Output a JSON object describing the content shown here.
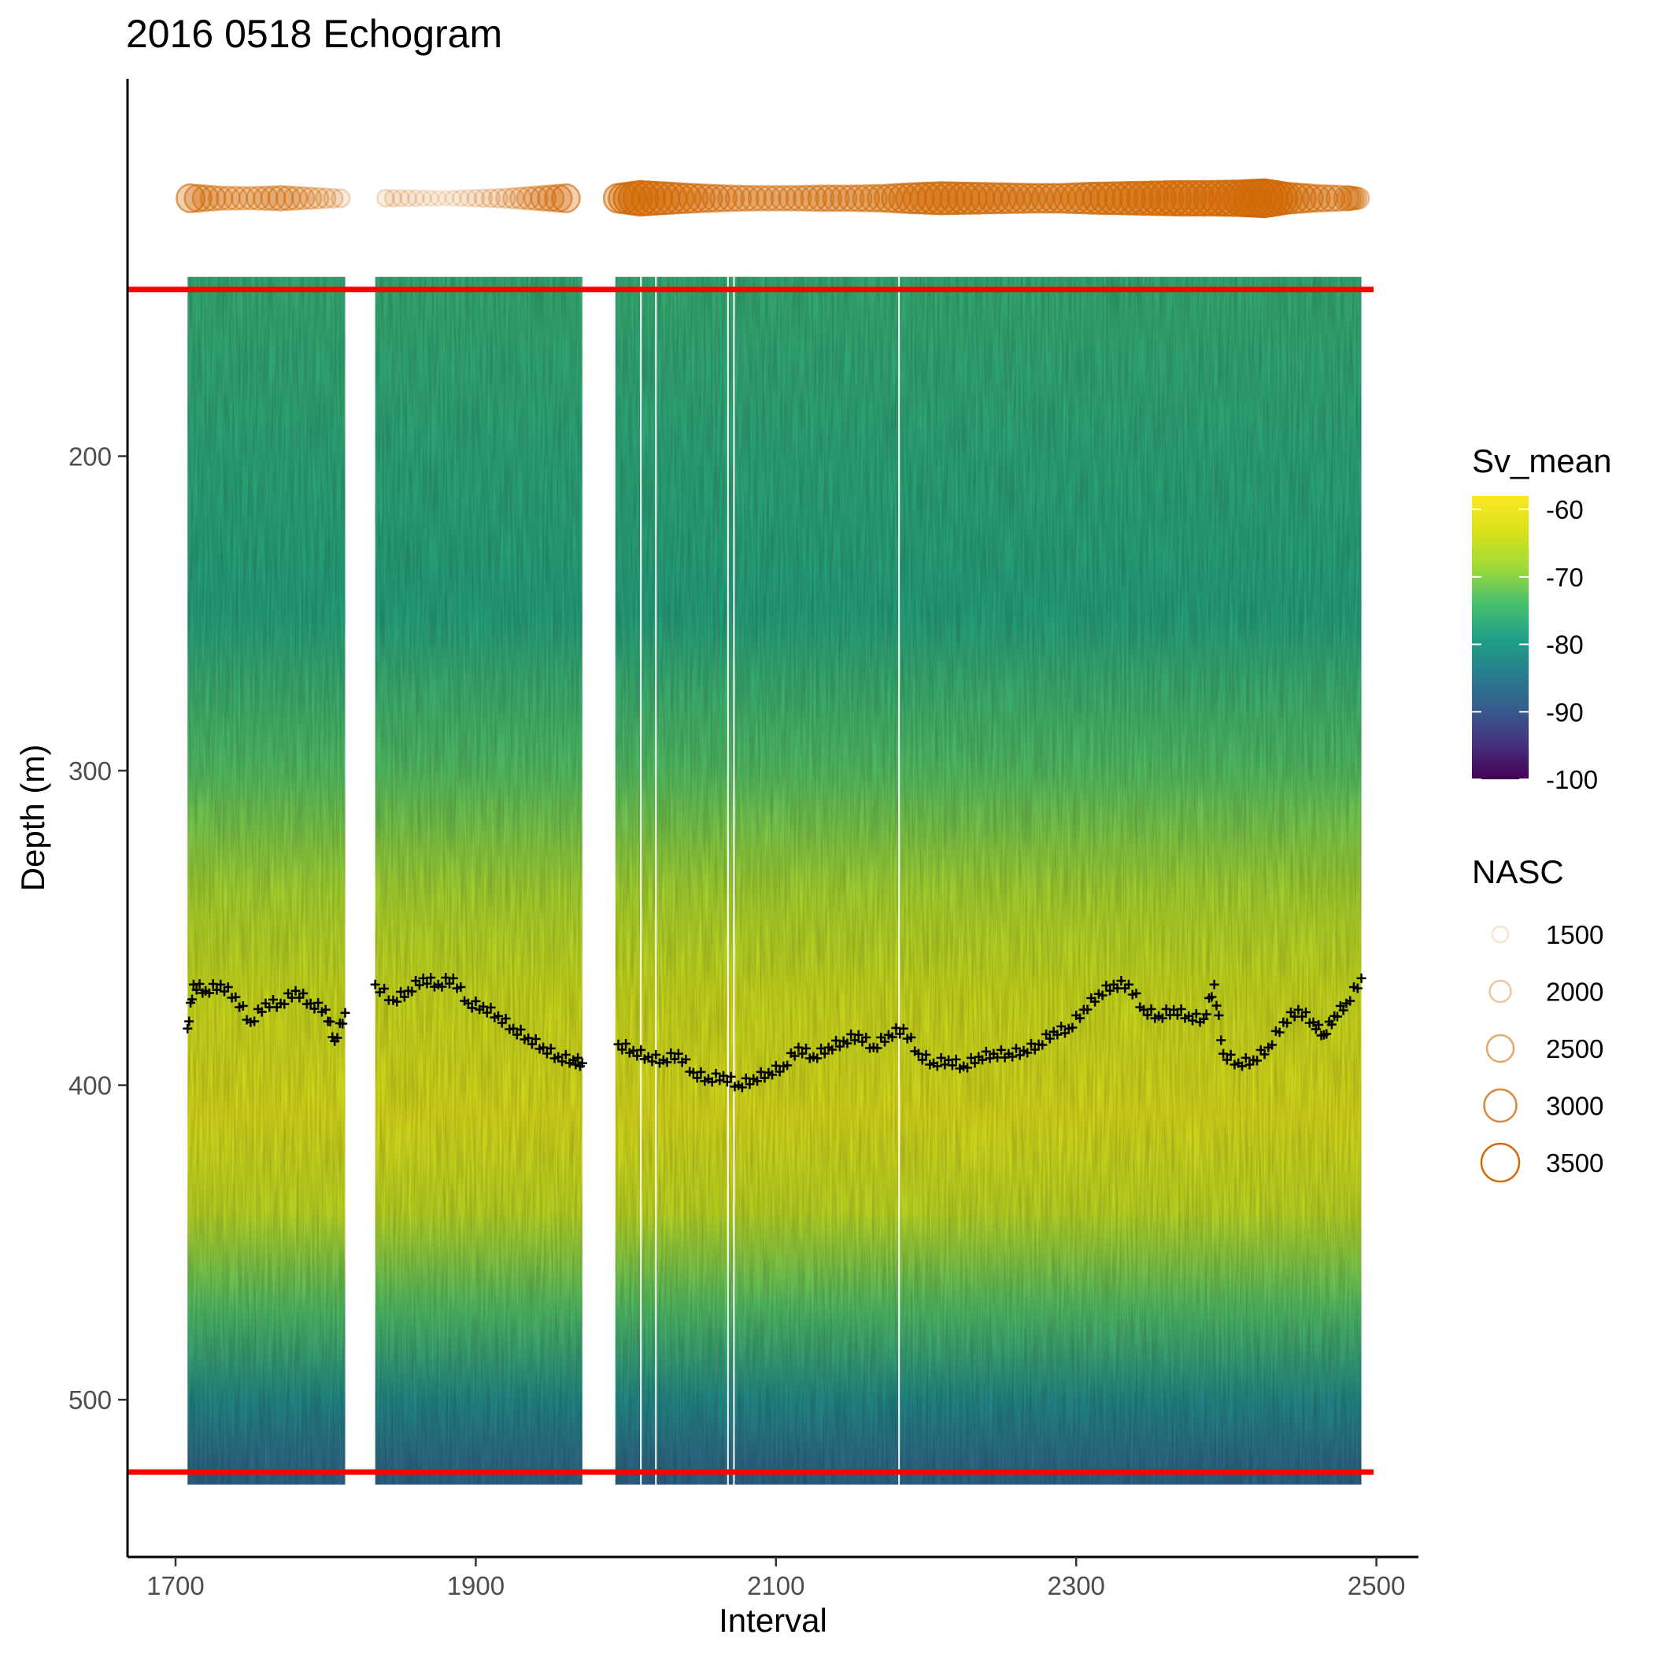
{
  "chart_data": {
    "type": "heatmap",
    "title": "2016 0518 Echogram",
    "xlabel": "Interval",
    "ylabel": "Depth (m)",
    "x_ticks": [
      1700,
      1900,
      2100,
      2300,
      2500
    ],
    "y_ticks": [
      200,
      300,
      400,
      500
    ],
    "xlim": [
      1668,
      2528
    ],
    "ylim": [
      80,
      550
    ],
    "grid": false,
    "data_segments": [
      [
        1708,
        1813
      ],
      [
        1833,
        1971
      ],
      [
        1993,
        2490
      ]
    ],
    "gap_lines": [
      2010,
      2020,
      2068,
      2072,
      2182
    ],
    "depth_range": [
      143,
      527
    ],
    "reference_lines": {
      "color": "#ff0000",
      "depths": [
        147,
        523
      ]
    },
    "sv_mean": {
      "legend_title": "Sv_mean",
      "range": [
        -100,
        -58
      ],
      "ticks": [
        -60,
        -70,
        -80,
        -90,
        -100
      ],
      "colormap": "viridis",
      "profile": [
        {
          "depth": 145,
          "sv": -76
        },
        {
          "depth": 200,
          "sv": -77
        },
        {
          "depth": 250,
          "sv": -78
        },
        {
          "depth": 300,
          "sv": -73
        },
        {
          "depth": 340,
          "sv": -67
        },
        {
          "depth": 370,
          "sv": -64
        },
        {
          "depth": 410,
          "sv": -62
        },
        {
          "depth": 440,
          "sv": -65
        },
        {
          "depth": 470,
          "sv": -73
        },
        {
          "depth": 500,
          "sv": -82
        },
        {
          "depth": 525,
          "sv": -88
        }
      ]
    },
    "nasc": {
      "legend_title": "NASC",
      "color": "#d16a06",
      "legend_values": [
        1500,
        2000,
        2500,
        3000,
        3500
      ],
      "marker_depth": 118,
      "series": [
        {
          "x": 1710,
          "nasc": 2600
        },
        {
          "x": 1730,
          "nasc": 2200
        },
        {
          "x": 1750,
          "nasc": 2100
        },
        {
          "x": 1770,
          "nasc": 2300
        },
        {
          "x": 1790,
          "nasc": 2000
        },
        {
          "x": 1810,
          "nasc": 1700
        },
        {
          "x": 1840,
          "nasc": 1600
        },
        {
          "x": 1860,
          "nasc": 1500
        },
        {
          "x": 1880,
          "nasc": 1400
        },
        {
          "x": 1900,
          "nasc": 1600
        },
        {
          "x": 1920,
          "nasc": 1800
        },
        {
          "x": 1940,
          "nasc": 2200
        },
        {
          "x": 1960,
          "nasc": 2600
        },
        {
          "x": 1995,
          "nasc": 2700
        },
        {
          "x": 2010,
          "nasc": 3200
        },
        {
          "x": 2030,
          "nasc": 2900
        },
        {
          "x": 2050,
          "nasc": 2600
        },
        {
          "x": 2070,
          "nasc": 2400
        },
        {
          "x": 2090,
          "nasc": 2300
        },
        {
          "x": 2110,
          "nasc": 2300
        },
        {
          "x": 2130,
          "nasc": 2400
        },
        {
          "x": 2150,
          "nasc": 2400
        },
        {
          "x": 2170,
          "nasc": 2500
        },
        {
          "x": 2190,
          "nasc": 2800
        },
        {
          "x": 2210,
          "nasc": 3000
        },
        {
          "x": 2230,
          "nasc": 2900
        },
        {
          "x": 2250,
          "nasc": 2800
        },
        {
          "x": 2270,
          "nasc": 2700
        },
        {
          "x": 2290,
          "nasc": 2700
        },
        {
          "x": 2310,
          "nasc": 2900
        },
        {
          "x": 2330,
          "nasc": 3000
        },
        {
          "x": 2350,
          "nasc": 3100
        },
        {
          "x": 2370,
          "nasc": 3200
        },
        {
          "x": 2390,
          "nasc": 3200
        },
        {
          "x": 2410,
          "nasc": 3300
        },
        {
          "x": 2425,
          "nasc": 3500
        },
        {
          "x": 2440,
          "nasc": 2900
        },
        {
          "x": 2460,
          "nasc": 2500
        },
        {
          "x": 2480,
          "nasc": 2300
        },
        {
          "x": 2488,
          "nasc": 2000
        }
      ]
    },
    "layer_depth_series": {
      "marker": "+",
      "color": "#000000",
      "points": [
        {
          "x": 1708,
          "depth": 382
        },
        {
          "x": 1712,
          "depth": 368
        },
        {
          "x": 1720,
          "depth": 370
        },
        {
          "x": 1730,
          "depth": 368
        },
        {
          "x": 1740,
          "depth": 372
        },
        {
          "x": 1750,
          "depth": 380
        },
        {
          "x": 1760,
          "depth": 374
        },
        {
          "x": 1770,
          "depth": 374
        },
        {
          "x": 1780,
          "depth": 370
        },
        {
          "x": 1790,
          "depth": 374
        },
        {
          "x": 1800,
          "depth": 376
        },
        {
          "x": 1806,
          "depth": 386
        },
        {
          "x": 1813,
          "depth": 377
        },
        {
          "x": 1833,
          "depth": 368
        },
        {
          "x": 1845,
          "depth": 373
        },
        {
          "x": 1855,
          "depth": 370
        },
        {
          "x": 1865,
          "depth": 366
        },
        {
          "x": 1875,
          "depth": 368
        },
        {
          "x": 1885,
          "depth": 366
        },
        {
          "x": 1895,
          "depth": 374
        },
        {
          "x": 1905,
          "depth": 375
        },
        {
          "x": 1915,
          "depth": 378
        },
        {
          "x": 1925,
          "depth": 382
        },
        {
          "x": 1935,
          "depth": 385
        },
        {
          "x": 1945,
          "depth": 388
        },
        {
          "x": 1955,
          "depth": 391
        },
        {
          "x": 1965,
          "depth": 392
        },
        {
          "x": 1971,
          "depth": 393
        },
        {
          "x": 1995,
          "depth": 387
        },
        {
          "x": 2005,
          "depth": 389
        },
        {
          "x": 2015,
          "depth": 391
        },
        {
          "x": 2025,
          "depth": 392
        },
        {
          "x": 2035,
          "depth": 390
        },
        {
          "x": 2045,
          "depth": 396
        },
        {
          "x": 2055,
          "depth": 398
        },
        {
          "x": 2065,
          "depth": 397
        },
        {
          "x": 2075,
          "depth": 400
        },
        {
          "x": 2085,
          "depth": 398
        },
        {
          "x": 2095,
          "depth": 396
        },
        {
          "x": 2105,
          "depth": 394
        },
        {
          "x": 2115,
          "depth": 388
        },
        {
          "x": 2125,
          "depth": 391
        },
        {
          "x": 2135,
          "depth": 388
        },
        {
          "x": 2145,
          "depth": 386
        },
        {
          "x": 2155,
          "depth": 384
        },
        {
          "x": 2165,
          "depth": 388
        },
        {
          "x": 2175,
          "depth": 384
        },
        {
          "x": 2185,
          "depth": 382
        },
        {
          "x": 2195,
          "depth": 390
        },
        {
          "x": 2205,
          "depth": 393
        },
        {
          "x": 2215,
          "depth": 392
        },
        {
          "x": 2225,
          "depth": 394
        },
        {
          "x": 2235,
          "depth": 391
        },
        {
          "x": 2245,
          "depth": 390
        },
        {
          "x": 2255,
          "depth": 390
        },
        {
          "x": 2265,
          "depth": 389
        },
        {
          "x": 2275,
          "depth": 387
        },
        {
          "x": 2285,
          "depth": 383
        },
        {
          "x": 2295,
          "depth": 382
        },
        {
          "x": 2305,
          "depth": 376
        },
        {
          "x": 2315,
          "depth": 371
        },
        {
          "x": 2325,
          "depth": 368
        },
        {
          "x": 2335,
          "depth": 368
        },
        {
          "x": 2345,
          "depth": 376
        },
        {
          "x": 2355,
          "depth": 378
        },
        {
          "x": 2365,
          "depth": 376
        },
        {
          "x": 2375,
          "depth": 378
        },
        {
          "x": 2385,
          "depth": 379
        },
        {
          "x": 2392,
          "depth": 368
        },
        {
          "x": 2398,
          "depth": 390
        },
        {
          "x": 2408,
          "depth": 393
        },
        {
          "x": 2418,
          "depth": 392
        },
        {
          "x": 2428,
          "depth": 388
        },
        {
          "x": 2438,
          "depth": 380
        },
        {
          "x": 2448,
          "depth": 376
        },
        {
          "x": 2458,
          "depth": 380
        },
        {
          "x": 2465,
          "depth": 384
        },
        {
          "x": 2472,
          "depth": 378
        },
        {
          "x": 2480,
          "depth": 374
        },
        {
          "x": 2490,
          "depth": 366
        }
      ]
    }
  }
}
